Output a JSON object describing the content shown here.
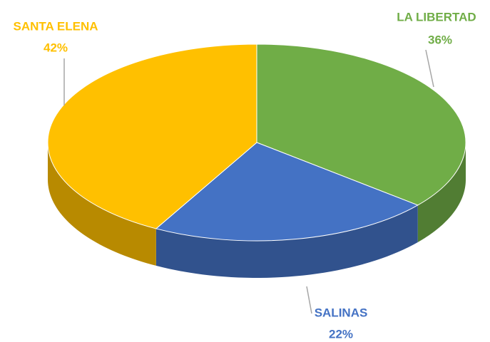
{
  "chart_data": {
    "type": "pie",
    "categories": [
      "LA LIBERTAD",
      "SALINAS",
      "SANTA ELENA"
    ],
    "values": [
      36,
      22,
      42
    ],
    "value_labels": [
      "36%",
      "22%",
      "42%"
    ],
    "colors": [
      "#70ad47",
      "#4472c4",
      "#ffc000"
    ]
  }
}
